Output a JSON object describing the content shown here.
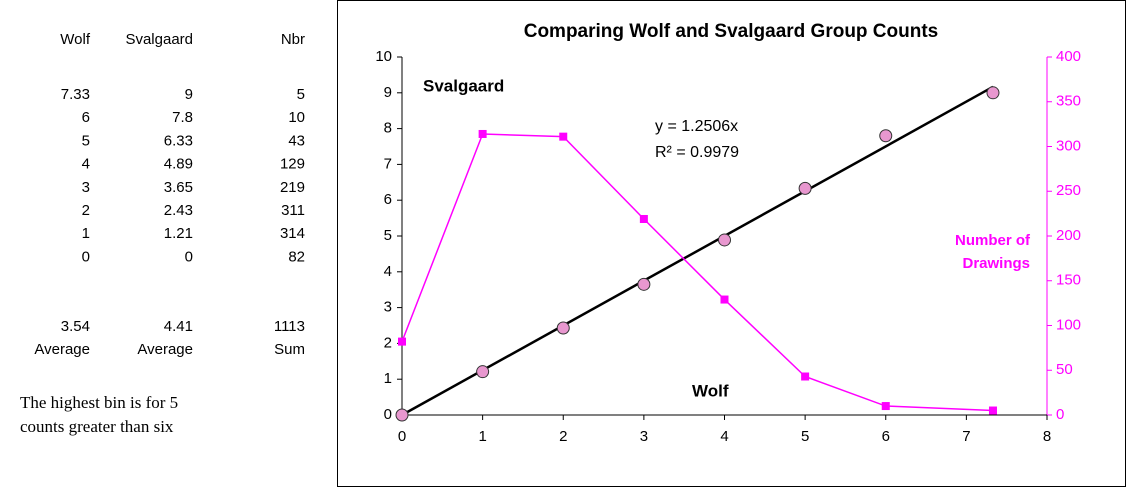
{
  "table": {
    "header": [
      "Wolf",
      "Svalgaard",
      "Nbr"
    ],
    "rows": [
      [
        "7.33",
        "9",
        "5"
      ],
      [
        "6",
        "7.8",
        "10"
      ],
      [
        "5",
        "6.33",
        "43"
      ],
      [
        "4",
        "4.89",
        "129"
      ],
      [
        "3",
        "3.65",
        "219"
      ],
      [
        "2",
        "2.43",
        "311"
      ],
      [
        "1",
        "1.21",
        "314"
      ],
      [
        "0",
        "0",
        "82"
      ]
    ],
    "summary": {
      "values": [
        "3.54",
        "4.41",
        "1113"
      ],
      "labels": [
        "Average",
        "Average",
        "Sum"
      ]
    },
    "note": [
      "The highest bin is for 5",
      "counts greater than six"
    ]
  },
  "chart_data": {
    "type": "scatter",
    "title": "Comparing Wolf and Svalgaard Group Counts",
    "xlabel": "Wolf",
    "ylabel": "Svalgaard",
    "y2label": [
      "Number of",
      "Drawings"
    ],
    "x": [
      0,
      1,
      2,
      3,
      4,
      5,
      6,
      7.33
    ],
    "series": [
      {
        "values": [
          0,
          1.21,
          2.43,
          3.65,
          4.89,
          6.33,
          7.8,
          9
        ],
        "color": "#e897cf",
        "marker": "circle"
      },
      {
        "values": [
          82,
          314,
          311,
          219,
          129,
          43,
          10,
          5
        ],
        "color": "#ff00ff",
        "marker": "square",
        "axis": "y2"
      }
    ],
    "trendline": {
      "slope": 1.2506,
      "label": "y = 1.2506x",
      "r2_label": "R² = 0.9979",
      "color": "#000000"
    },
    "xlim": [
      0,
      8
    ],
    "xticks": [
      0,
      1,
      2,
      3,
      4,
      5,
      6,
      7,
      8
    ],
    "ylim": [
      0,
      10
    ],
    "yticks": [
      0,
      1,
      2,
      3,
      4,
      5,
      6,
      7,
      8,
      9,
      10
    ],
    "y2lim": [
      0,
      400
    ],
    "y2ticks": [
      0,
      50,
      100,
      150,
      200,
      250,
      300,
      350,
      400
    ],
    "grid": false
  }
}
